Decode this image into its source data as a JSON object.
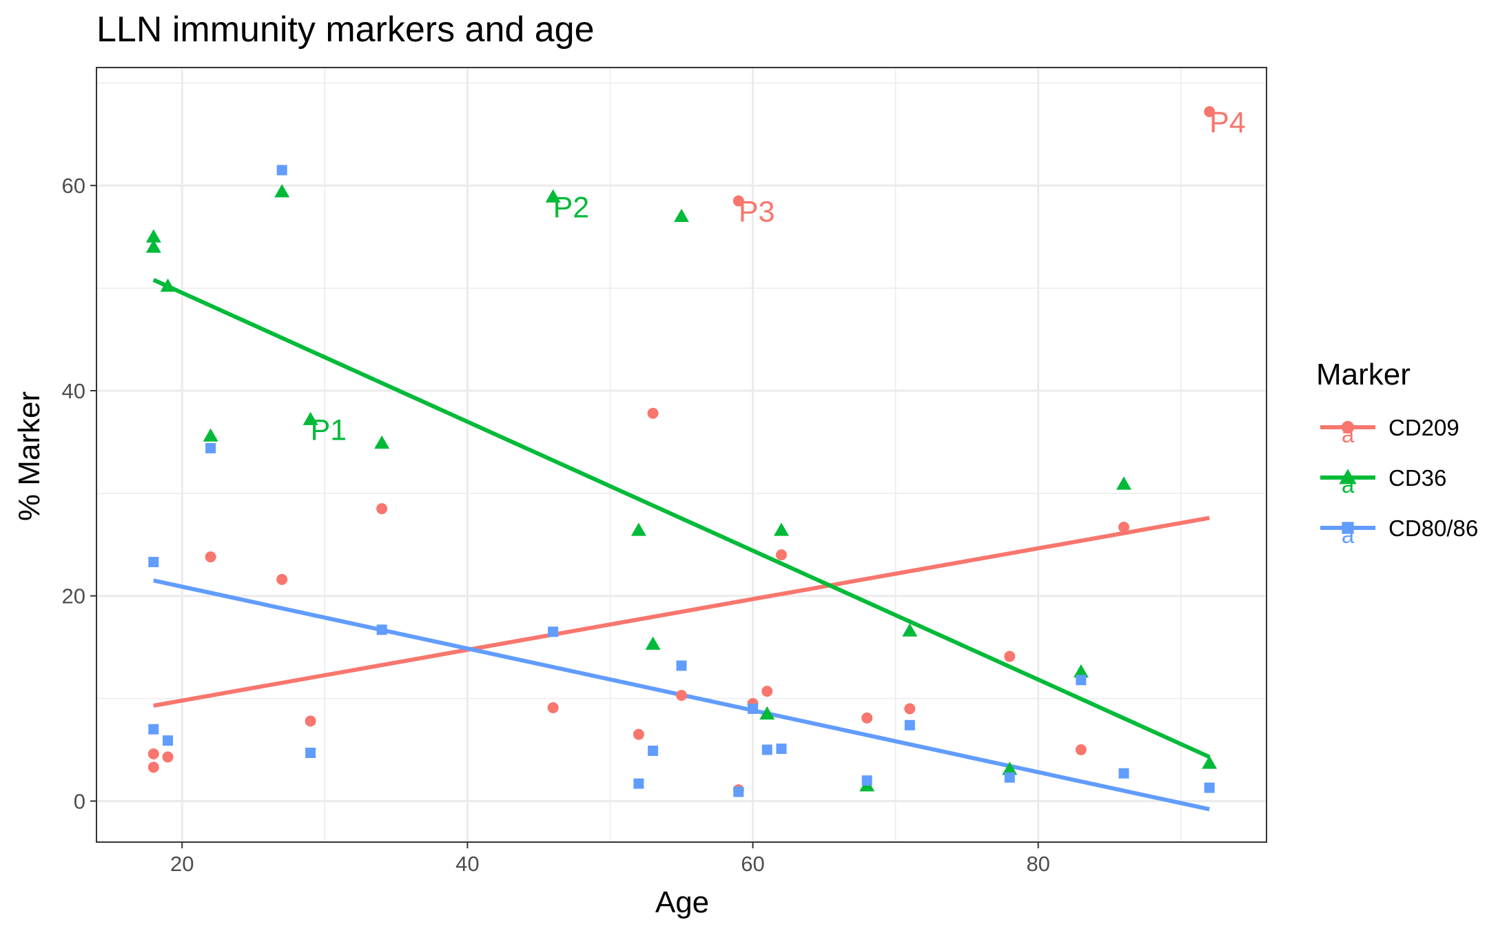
{
  "chart_data": {
    "type": "scatter",
    "title": "LLN immunity markers and age",
    "xlabel": "Age",
    "ylabel": "% Marker",
    "xlim": [
      14,
      96
    ],
    "ylim": [
      -4,
      71.5
    ],
    "x_ticks": [
      20,
      40,
      60,
      80
    ],
    "y_ticks": [
      0,
      20,
      40,
      60
    ],
    "grid": true,
    "legend": {
      "title": "Marker",
      "placement": "right"
    },
    "series": [
      {
        "name": "CD209",
        "color": "#F8766D",
        "shape": "circle",
        "points": [
          [
            18,
            4.6
          ],
          [
            18,
            3.3
          ],
          [
            19,
            4.3
          ],
          [
            22,
            23.8
          ],
          [
            27,
            21.6
          ],
          [
            29,
            7.8
          ],
          [
            34,
            28.5
          ],
          [
            46,
            9.1
          ],
          [
            52,
            6.5
          ],
          [
            53,
            37.8
          ],
          [
            55,
            10.3
          ],
          [
            59,
            58.5
          ],
          [
            59,
            1.1
          ],
          [
            60,
            9.5
          ],
          [
            61,
            10.7
          ],
          [
            62,
            24.0
          ],
          [
            68,
            8.1
          ],
          [
            71,
            9.0
          ],
          [
            78,
            14.1
          ],
          [
            83,
            5.0
          ],
          [
            86,
            26.7
          ],
          [
            92,
            67.2
          ]
        ],
        "trend": [
          [
            18,
            9.3
          ],
          [
            92,
            27.6
          ]
        ]
      },
      {
        "name": "CD36",
        "color": "#00BA38",
        "shape": "triangle",
        "points": [
          [
            18,
            55.0
          ],
          [
            18,
            54.0
          ],
          [
            19,
            50.2
          ],
          [
            22,
            35.6
          ],
          [
            27,
            59.4
          ],
          [
            29,
            37.2
          ],
          [
            34,
            34.9
          ],
          [
            46,
            58.9
          ],
          [
            52,
            26.4
          ],
          [
            53,
            15.3
          ],
          [
            55,
            57.0
          ],
          [
            61,
            8.5
          ],
          [
            62,
            26.4
          ],
          [
            68,
            1.5
          ],
          [
            71,
            16.6
          ],
          [
            78,
            3.1
          ],
          [
            83,
            12.6
          ],
          [
            86,
            30.9
          ],
          [
            92,
            3.7
          ]
        ],
        "trend": [
          [
            18,
            50.8
          ],
          [
            92,
            4.3
          ]
        ]
      },
      {
        "name": "CD80/86",
        "color": "#619CFF",
        "shape": "square",
        "points": [
          [
            18,
            23.3
          ],
          [
            18,
            7.0
          ],
          [
            19,
            5.9
          ],
          [
            22,
            34.4
          ],
          [
            27,
            61.5
          ],
          [
            29,
            4.7
          ],
          [
            34,
            16.7
          ],
          [
            46,
            16.5
          ],
          [
            52,
            1.7
          ],
          [
            53,
            4.9
          ],
          [
            55,
            13.2
          ],
          [
            59,
            0.9
          ],
          [
            60,
            9.0
          ],
          [
            61,
            5.0
          ],
          [
            62,
            5.1
          ],
          [
            68,
            2.0
          ],
          [
            71,
            7.4
          ],
          [
            78,
            2.3
          ],
          [
            83,
            11.8
          ],
          [
            86,
            2.7
          ],
          [
            92,
            1.3
          ]
        ],
        "trend": [
          [
            18,
            21.5
          ],
          [
            92,
            -0.8
          ]
        ]
      }
    ],
    "annotations": [
      {
        "text": "P1",
        "x": 29,
        "y": 37.2,
        "series": "CD36"
      },
      {
        "text": "P2",
        "x": 46,
        "y": 58.9,
        "series": "CD36"
      },
      {
        "text": "P3",
        "x": 59,
        "y": 58.5,
        "series": "CD209"
      },
      {
        "text": "P4",
        "x": 92,
        "y": 67.2,
        "series": "CD209"
      }
    ]
  }
}
